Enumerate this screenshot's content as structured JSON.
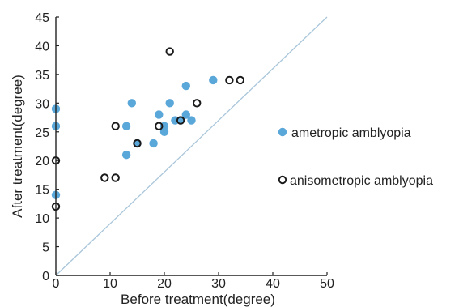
{
  "chart_data": {
    "type": "scatter",
    "title": "",
    "xlabel": "Before treatment(degree)",
    "ylabel": "After treatment(degree)",
    "xlim": [
      0,
      50
    ],
    "ylim": [
      0,
      45
    ],
    "xticks": [
      "0",
      "10",
      "20",
      "30",
      "40",
      "50"
    ],
    "yticks": [
      "0",
      "5",
      "10",
      "15",
      "20",
      "25",
      "30",
      "35",
      "40",
      "45"
    ],
    "grid": false,
    "legend_position": "right",
    "reference_line": {
      "from": [
        0,
        0
      ],
      "to": [
        50,
        45
      ],
      "color": "#a9c6da"
    },
    "series": [
      {
        "name": "ametropic amblyopia",
        "marker": "filled-circle",
        "color": "#5aa7d9",
        "points": [
          [
            0,
            29
          ],
          [
            0,
            26
          ],
          [
            0,
            14
          ],
          [
            13,
            21
          ],
          [
            13,
            26
          ],
          [
            14,
            30
          ],
          [
            15,
            23
          ],
          [
            18,
            23
          ],
          [
            19,
            28
          ],
          [
            20,
            25
          ],
          [
            20,
            26
          ],
          [
            21,
            30
          ],
          [
            22,
            27
          ],
          [
            23,
            27
          ],
          [
            24,
            28
          ],
          [
            24,
            33
          ],
          [
            25,
            27
          ],
          [
            29,
            34
          ]
        ]
      },
      {
        "name": "anisometropic amblyopia",
        "marker": "open-circle",
        "color": "#1a1a1a",
        "points": [
          [
            0,
            20
          ],
          [
            0,
            12
          ],
          [
            9,
            17
          ],
          [
            11,
            17
          ],
          [
            11,
            26
          ],
          [
            15,
            23
          ],
          [
            19,
            26
          ],
          [
            21,
            39
          ],
          [
            23,
            27
          ],
          [
            26,
            30
          ],
          [
            32,
            34
          ],
          [
            34,
            34
          ]
        ]
      }
    ]
  }
}
